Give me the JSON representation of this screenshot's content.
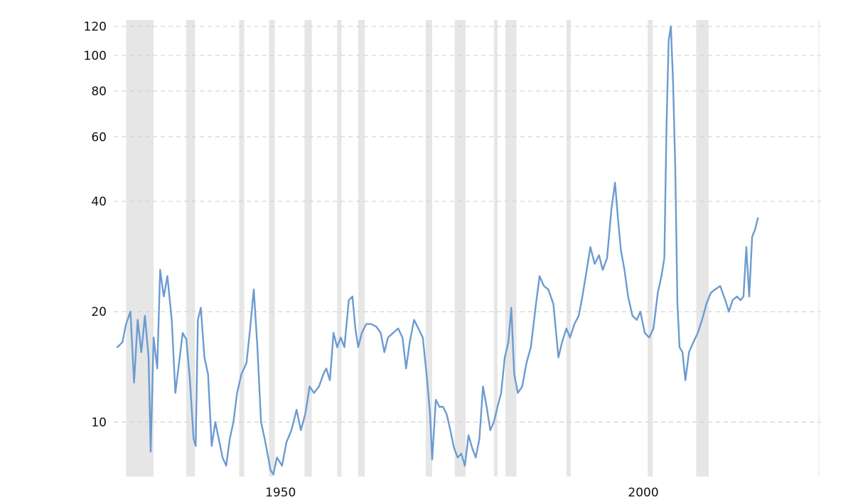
{
  "chart_data": {
    "type": "line",
    "title": "",
    "xlabel": "",
    "ylabel": "",
    "y_scale": "log",
    "ylim": [
      7.1,
      125
    ],
    "xlim": [
      1927.0,
      2024.2
    ],
    "grid": "horizontal dashed",
    "y_ticks": [
      {
        "value": 10,
        "label": "10"
      },
      {
        "value": 20,
        "label": "20"
      },
      {
        "value": 40,
        "label": "40"
      },
      {
        "value": 60,
        "label": "60"
      },
      {
        "value": 80,
        "label": "80"
      },
      {
        "value": 100,
        "label": "100"
      },
      {
        "value": 120,
        "label": "120"
      }
    ],
    "x_ticks": [
      {
        "value": 1950,
        "label": "1950"
      },
      {
        "value": 2000,
        "label": "2000"
      }
    ],
    "recessions": [
      [
        1928.7,
        1932.5
      ],
      [
        1937.0,
        1938.2
      ],
      [
        1944.3,
        1945.0
      ],
      [
        1948.4,
        1949.2
      ],
      [
        1953.3,
        1954.3
      ],
      [
        1957.8,
        1958.4
      ],
      [
        1960.7,
        1961.6
      ],
      [
        1970.0,
        1970.9
      ],
      [
        1974.0,
        1975.5
      ],
      [
        1979.4,
        1979.9
      ],
      [
        1981.0,
        1982.5
      ],
      [
        1989.4,
        1990.0
      ],
      [
        2000.6,
        2001.3
      ],
      [
        2007.3,
        2009.0
      ]
    ],
    "series": [
      {
        "color": "#6b9bd1",
        "points": [
          [
            1927.5,
            16.0
          ],
          [
            1928.2,
            16.5
          ],
          [
            1928.7,
            18.5
          ],
          [
            1929.3,
            20.0
          ],
          [
            1929.8,
            12.8
          ],
          [
            1930.3,
            19.0
          ],
          [
            1930.8,
            15.5
          ],
          [
            1931.3,
            19.5
          ],
          [
            1931.8,
            15.0
          ],
          [
            1932.1,
            8.3
          ],
          [
            1932.5,
            17.0
          ],
          [
            1933.0,
            14.0
          ],
          [
            1933.4,
            26.0
          ],
          [
            1933.9,
            22.0
          ],
          [
            1934.4,
            25.0
          ],
          [
            1935.0,
            19.0
          ],
          [
            1935.5,
            12.0
          ],
          [
            1936.0,
            14.5
          ],
          [
            1936.5,
            17.5
          ],
          [
            1937.0,
            16.8
          ],
          [
            1937.5,
            13.0
          ],
          [
            1938.0,
            9.0
          ],
          [
            1938.3,
            8.6
          ],
          [
            1938.6,
            19.0
          ],
          [
            1939.0,
            20.5
          ],
          [
            1939.5,
            15.0
          ],
          [
            1940.0,
            13.5
          ],
          [
            1940.5,
            8.6
          ],
          [
            1941.0,
            10.0
          ],
          [
            1942.0,
            8.0
          ],
          [
            1942.5,
            7.6
          ],
          [
            1943.0,
            9.0
          ],
          [
            1943.5,
            10.0
          ],
          [
            1944.0,
            12.0
          ],
          [
            1944.6,
            13.5
          ],
          [
            1945.3,
            14.5
          ],
          [
            1945.8,
            18.0
          ],
          [
            1946.3,
            23.0
          ],
          [
            1946.8,
            16.0
          ],
          [
            1947.3,
            10.0
          ],
          [
            1947.8,
            9.0
          ],
          [
            1948.3,
            8.0
          ],
          [
            1948.6,
            7.4
          ],
          [
            1949.0,
            7.2
          ],
          [
            1949.5,
            8.0
          ],
          [
            1950.2,
            7.6
          ],
          [
            1950.8,
            8.8
          ],
          [
            1951.5,
            9.5
          ],
          [
            1952.2,
            10.8
          ],
          [
            1952.8,
            9.5
          ],
          [
            1953.4,
            10.5
          ],
          [
            1954.0,
            12.5
          ],
          [
            1954.6,
            12.0
          ],
          [
            1955.3,
            12.5
          ],
          [
            1955.9,
            13.5
          ],
          [
            1956.3,
            14.0
          ],
          [
            1956.8,
            13.0
          ],
          [
            1957.3,
            17.5
          ],
          [
            1957.8,
            16.0
          ],
          [
            1958.3,
            17.0
          ],
          [
            1958.8,
            16.0
          ],
          [
            1959.4,
            21.5
          ],
          [
            1959.9,
            22.0
          ],
          [
            1960.3,
            18.0
          ],
          [
            1960.7,
            16.0
          ],
          [
            1961.2,
            17.5
          ],
          [
            1961.8,
            18.5
          ],
          [
            1962.5,
            18.5
          ],
          [
            1963.2,
            18.2
          ],
          [
            1963.8,
            17.5
          ],
          [
            1964.3,
            15.5
          ],
          [
            1964.8,
            17.0
          ],
          [
            1965.5,
            17.5
          ],
          [
            1966.2,
            18.0
          ],
          [
            1966.8,
            17.0
          ],
          [
            1967.3,
            14.0
          ],
          [
            1967.8,
            16.5
          ],
          [
            1968.4,
            19.0
          ],
          [
            1969.0,
            18.0
          ],
          [
            1969.6,
            17.0
          ],
          [
            1970.2,
            13.0
          ],
          [
            1970.6,
            10.5
          ],
          [
            1970.9,
            7.9
          ],
          [
            1971.4,
            11.5
          ],
          [
            1971.9,
            11.0
          ],
          [
            1972.4,
            11.0
          ],
          [
            1972.9,
            10.5
          ],
          [
            1973.4,
            9.5
          ],
          [
            1973.9,
            8.5
          ],
          [
            1974.4,
            8.0
          ],
          [
            1974.9,
            8.2
          ],
          [
            1975.4,
            7.6
          ],
          [
            1975.9,
            9.2
          ],
          [
            1976.4,
            8.5
          ],
          [
            1976.9,
            8.0
          ],
          [
            1977.4,
            9.0
          ],
          [
            1977.9,
            12.5
          ],
          [
            1978.4,
            11.0
          ],
          [
            1978.9,
            9.5
          ],
          [
            1979.4,
            10.0
          ],
          [
            1979.9,
            11.0
          ],
          [
            1980.4,
            12.0
          ],
          [
            1980.9,
            15.0
          ],
          [
            1981.4,
            16.5
          ],
          [
            1981.8,
            20.5
          ],
          [
            1982.2,
            13.5
          ],
          [
            1982.7,
            12.0
          ],
          [
            1983.3,
            12.5
          ],
          [
            1983.9,
            14.5
          ],
          [
            1984.5,
            16.0
          ],
          [
            1985.2,
            21.0
          ],
          [
            1985.7,
            25.0
          ],
          [
            1986.3,
            23.5
          ],
          [
            1986.9,
            23.0
          ],
          [
            1987.6,
            21.0
          ],
          [
            1988.3,
            15.0
          ],
          [
            1988.8,
            16.5
          ],
          [
            1989.4,
            18.0
          ],
          [
            1989.9,
            17.0
          ],
          [
            1990.5,
            18.5
          ],
          [
            1991.1,
            19.5
          ],
          [
            1991.6,
            22.0
          ],
          [
            1992.2,
            26.0
          ],
          [
            1992.7,
            30.0
          ],
          [
            1993.3,
            27.0
          ],
          [
            1993.9,
            28.5
          ],
          [
            1994.4,
            26.0
          ],
          [
            1995.0,
            28.0
          ],
          [
            1995.6,
            38.0
          ],
          [
            1996.1,
            45.0
          ],
          [
            1996.5,
            36.0
          ],
          [
            1996.9,
            29.5
          ],
          [
            1997.4,
            26.0
          ],
          [
            1997.9,
            22.0
          ],
          [
            1998.5,
            19.5
          ],
          [
            1999.1,
            19.0
          ],
          [
            1999.6,
            20.0
          ],
          [
            2000.2,
            17.5
          ],
          [
            2000.8,
            17.0
          ],
          [
            2001.4,
            18.0
          ],
          [
            2002.0,
            22.5
          ],
          [
            2002.5,
            25.0
          ],
          [
            2002.9,
            28.0
          ],
          [
            2003.2,
            65.0
          ],
          [
            2003.5,
            110.0
          ],
          [
            2003.8,
            120.0
          ],
          [
            2004.1,
            84.0
          ],
          [
            2004.4,
            50.0
          ],
          [
            2004.7,
            21.0
          ],
          [
            2005.0,
            16.0
          ],
          [
            2005.4,
            15.5
          ],
          [
            2005.8,
            13.0
          ],
          [
            2006.3,
            15.5
          ],
          [
            2006.9,
            16.5
          ],
          [
            2007.5,
            17.5
          ],
          [
            2008.1,
            19.0
          ],
          [
            2008.7,
            21.0
          ],
          [
            2009.3,
            22.5
          ],
          [
            2009.9,
            23.0
          ],
          [
            2010.6,
            23.5
          ],
          [
            2011.3,
            21.5
          ],
          [
            2011.8,
            20.0
          ],
          [
            2012.3,
            21.5
          ],
          [
            2012.9,
            22.0
          ],
          [
            2013.4,
            21.5
          ],
          [
            2013.8,
            22.0
          ],
          [
            2014.2,
            30.0
          ],
          [
            2014.6,
            22.0
          ],
          [
            2015.0,
            32.0
          ],
          [
            2015.4,
            33.5
          ],
          [
            2015.8,
            36.0
          ]
        ]
      }
    ]
  }
}
